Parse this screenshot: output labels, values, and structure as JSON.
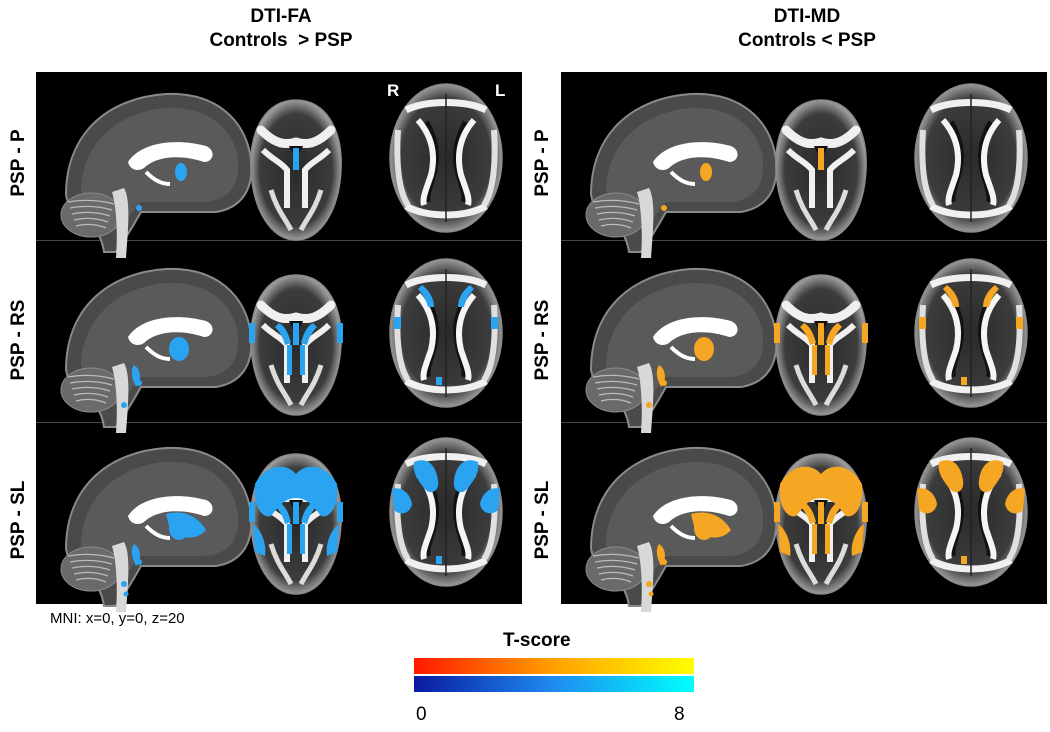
{
  "panels": [
    {
      "title_line1": "DTI-FA",
      "title_line2": "Controls  > PSP",
      "highlight_color": "#2aa4f0"
    },
    {
      "title_line1": "DTI-MD",
      "title_line2": "Controls < PSP",
      "highlight_color": "#f5a623"
    }
  ],
  "row_labels": [
    "PSP - P",
    "PSP - RS",
    "PSP - SL"
  ],
  "orientation": {
    "right": "R",
    "left": "L"
  },
  "mni_caption": "MNI: x=0, y=0, z=20",
  "colorbar": {
    "title": "T-score",
    "min_label": "0",
    "max_label": "8"
  },
  "colors": {
    "warm_start": "#ff1a00",
    "warm_end": "#ffff00",
    "cool_start": "#0a1aa0",
    "cool_end": "#00ffff"
  }
}
